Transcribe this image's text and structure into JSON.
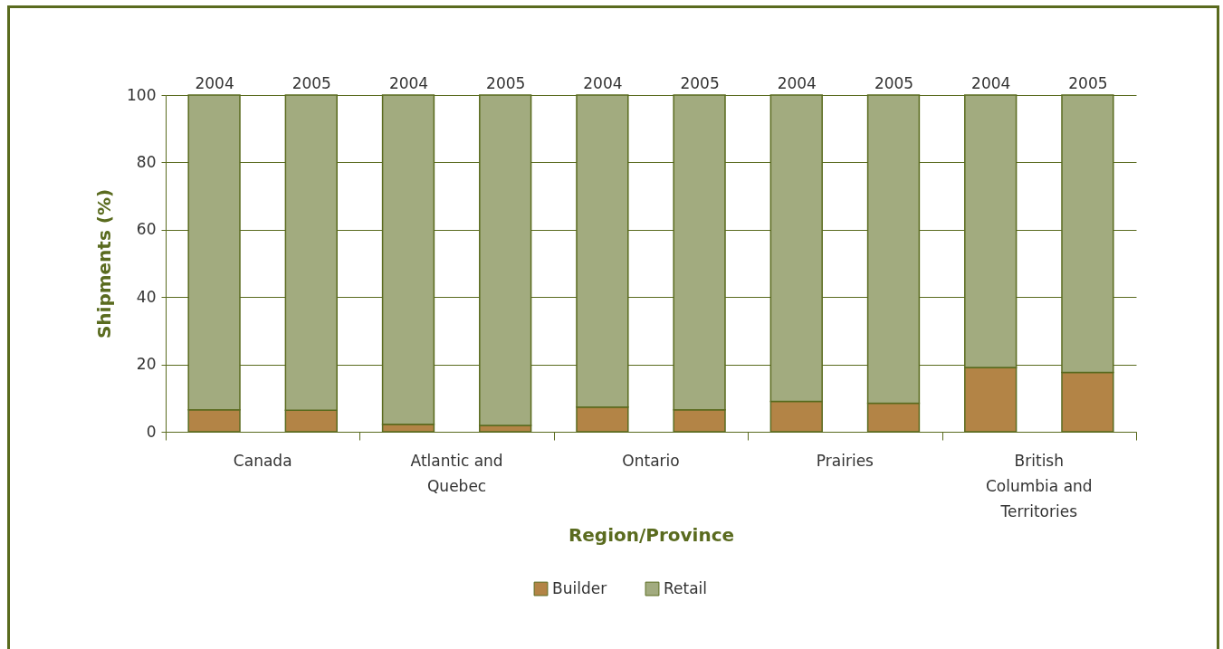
{
  "chart_data": {
    "type": "bar",
    "stacked": true,
    "ylabel": "Shipments (%)",
    "xlabel": "Region/Province",
    "categories": [
      "2004",
      "2005",
      "2004",
      "2005",
      "2004",
      "2005",
      "2004",
      "2005",
      "2004",
      "2005"
    ],
    "series": [
      {
        "name": "Builder",
        "color": "#b38446",
        "values": [
          6.5,
          6.4,
          2.2,
          1.9,
          7.3,
          6.5,
          9.0,
          8.5,
          19.1,
          17.6
        ]
      },
      {
        "name": "Retail",
        "color": "#a2ab7f",
        "values": [
          93.5,
          93.6,
          97.8,
          98.1,
          92.7,
          93.5,
          91.0,
          91.5,
          80.9,
          82.4
        ]
      }
    ],
    "annotations": [
      "Canada",
      "Atlantic and Quebec",
      "Ontario",
      "Prairies",
      "British Columbia and Territories"
    ],
    "ylim": [
      0,
      100
    ],
    "yticks": [
      0,
      20,
      40,
      60,
      80,
      100
    ],
    "grid": "y",
    "legend": "bottom"
  }
}
